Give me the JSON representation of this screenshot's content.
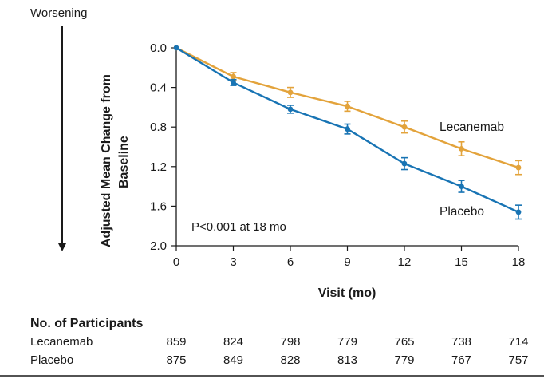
{
  "chart_data": {
    "type": "line",
    "title": "",
    "xlabel": "Visit (mo)",
    "ylabel": "Adjusted Mean Change from Baseline",
    "direction_label": "Worsening",
    "y_reversed": true,
    "xlim": [
      0,
      18
    ],
    "ylim": [
      0.0,
      2.0
    ],
    "x_ticks": [
      0,
      3,
      6,
      9,
      12,
      15,
      18
    ],
    "y_ticks": [
      "0.0",
      "0.4",
      "0.8",
      "1.2",
      "1.6",
      "2.0"
    ],
    "grid": false,
    "annotation": "P<0.001 at 18 mo",
    "series": [
      {
        "name": "Lecanemab",
        "color": "#E3A33B",
        "x": [
          0,
          3,
          6,
          9,
          12,
          15,
          18
        ],
        "y": [
          0.0,
          0.29,
          0.45,
          0.59,
          0.8,
          1.02,
          1.21
        ],
        "err": [
          0.0,
          0.04,
          0.05,
          0.05,
          0.06,
          0.07,
          0.07
        ]
      },
      {
        "name": "Placebo",
        "color": "#1874B4",
        "x": [
          0,
          3,
          6,
          9,
          12,
          15,
          18
        ],
        "y": [
          0.0,
          0.35,
          0.62,
          0.82,
          1.17,
          1.4,
          1.66
        ],
        "err": [
          0.0,
          0.03,
          0.04,
          0.05,
          0.06,
          0.06,
          0.07
        ]
      }
    ],
    "participants_table": {
      "title": "No. of Participants",
      "rows": [
        {
          "label": "Lecanemab",
          "values": [
            "859",
            "824",
            "798",
            "779",
            "765",
            "738",
            "714"
          ]
        },
        {
          "label": "Placebo",
          "values": [
            "875",
            "849",
            "828",
            "813",
            "779",
            "767",
            "757"
          ]
        }
      ]
    }
  }
}
